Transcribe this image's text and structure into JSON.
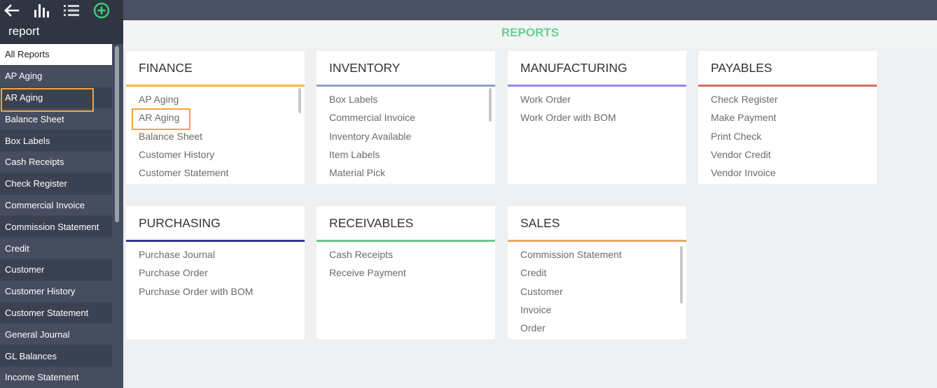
{
  "toolbar": {
    "back_icon": "arrow-left-icon",
    "chart_icon": "bar-chart-icon",
    "list_icon": "list-icon",
    "add_icon": "plus-circle-icon",
    "add_color": "#3ecf7a"
  },
  "sidebar": {
    "title": "report",
    "items": [
      {
        "label": "All Reports"
      },
      {
        "label": "AP Aging"
      },
      {
        "label": "AR Aging"
      },
      {
        "label": "Balance Sheet"
      },
      {
        "label": "Box Labels"
      },
      {
        "label": "Cash Receipts"
      },
      {
        "label": "Check Register"
      },
      {
        "label": "Commercial Invoice"
      },
      {
        "label": "Commission Statement"
      },
      {
        "label": "Credit"
      },
      {
        "label": "Customer"
      },
      {
        "label": "Customer History"
      },
      {
        "label": "Customer Statement"
      },
      {
        "label": "General Journal"
      },
      {
        "label": "GL Balances"
      },
      {
        "label": "Income Statement"
      }
    ]
  },
  "page": {
    "title": "REPORTS",
    "title_color": "#6bcf93"
  },
  "cards": [
    {
      "title": "FINANCE",
      "accent": "#f5b83d",
      "items": [
        "AP Aging",
        "AR Aging",
        "Balance Sheet",
        "Customer History",
        "Customer Statement"
      ]
    },
    {
      "title": "INVENTORY",
      "accent": "#8f9fc2",
      "items": [
        "Box Labels",
        "Commercial Invoice",
        "Inventory Available",
        "Item Labels",
        "Material Pick"
      ]
    },
    {
      "title": "MANUFACTURING",
      "accent": "#8b8fe8",
      "items": [
        "Work Order",
        "Work Order with BOM"
      ]
    },
    {
      "title": "PAYABLES",
      "accent": "#d36e5e",
      "items": [
        "Check Register",
        "Make Payment",
        "Print Check",
        "Vendor Credit",
        "Vendor Invoice"
      ]
    },
    {
      "title": "PURCHASING",
      "accent": "#38379a",
      "items": [
        "Purchase Journal",
        "Purchase Order",
        "Purchase Order with BOM"
      ]
    },
    {
      "title": "RECEIVABLES",
      "accent": "#6dc58f",
      "items": [
        "Cash Receipts",
        "Receive Payment"
      ]
    },
    {
      "title": "SALES",
      "accent": "#e8a868",
      "items": [
        "Commission Statement",
        "Credit",
        "Customer",
        "Invoice",
        "Order"
      ]
    }
  ]
}
